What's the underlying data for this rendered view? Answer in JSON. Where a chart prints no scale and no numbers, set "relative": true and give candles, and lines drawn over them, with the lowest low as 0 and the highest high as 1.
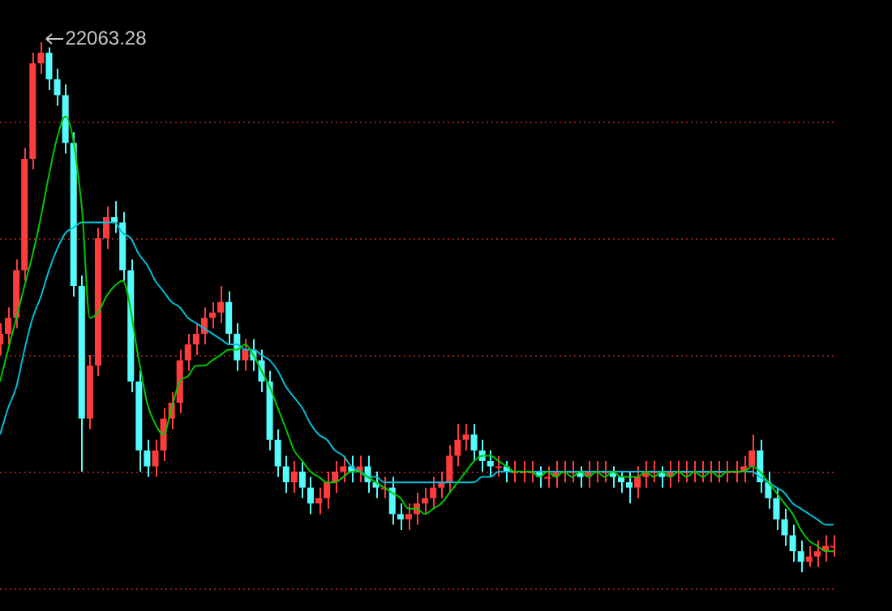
{
  "chart_data": {
    "type": "candlestick",
    "relative": true,
    "tick_labels": false,
    "ref_lines": [
      {
        "axis": "y",
        "value": 0.85,
        "color": "#8c1e1e",
        "line_style": "dotted"
      },
      {
        "axis": "y",
        "value": 0.63,
        "color": "#8c1e1e",
        "line_style": "dotted"
      },
      {
        "axis": "y",
        "value": 0.41,
        "color": "#8c1e1e",
        "line_style": "dotted"
      },
      {
        "axis": "y",
        "value": 0.19,
        "color": "#8c1e1e",
        "line_style": "dotted"
      },
      {
        "axis": "y",
        "value": -0.03,
        "color": "#8c1e1e",
        "line_style": "dotted"
      }
    ],
    "annotations": [
      "22063.28"
    ],
    "categories": [
      null,
      null,
      null,
      null,
      null,
      null,
      null,
      null,
      null,
      null,
      null,
      null,
      null,
      null,
      null,
      null,
      null,
      null,
      null,
      null,
      null,
      null,
      null,
      null,
      null,
      null,
      null,
      null,
      null,
      null,
      null,
      null,
      null,
      null,
      null,
      null,
      null,
      null,
      null,
      null,
      null,
      null,
      null,
      null,
      null,
      null,
      null,
      null,
      null,
      null,
      null,
      null,
      null,
      null,
      null,
      null,
      null,
      null,
      null,
      null,
      null,
      null,
      null,
      null,
      null,
      null,
      null,
      null,
      null,
      null,
      null,
      null,
      null,
      null,
      null,
      null,
      null,
      null,
      null,
      null,
      null,
      null,
      null,
      null,
      null,
      null,
      null,
      null,
      null,
      null,
      null,
      null,
      null,
      null,
      null,
      null,
      null,
      null,
      null,
      null,
      null,
      null,
      null
    ],
    "ohlc": [
      [
        0.43,
        0.47,
        0.41,
        0.45
      ],
      [
        0.45,
        0.5,
        0.43,
        0.48
      ],
      [
        0.48,
        0.59,
        0.46,
        0.57
      ],
      [
        0.57,
        0.8,
        0.55,
        0.78
      ],
      [
        0.78,
        0.98,
        0.76,
        0.96
      ],
      [
        0.96,
        1,
        0.94,
        0.98
      ],
      [
        0.98,
        0.99,
        0.91,
        0.93
      ],
      [
        0.93,
        0.95,
        0.88,
        0.9
      ],
      [
        0.9,
        0.92,
        0.79,
        0.81
      ],
      [
        0.81,
        0.83,
        0.52,
        0.54
      ],
      [
        0.54,
        0.56,
        0.19,
        0.29
      ],
      [
        0.29,
        0.41,
        0.27,
        0.39
      ],
      [
        0.39,
        0.65,
        0.37,
        0.63
      ],
      [
        0.63,
        0.69,
        0.61,
        0.67
      ],
      [
        0.67,
        0.7,
        0.64,
        0.66
      ],
      [
        0.66,
        0.68,
        0.55,
        0.57
      ],
      [
        0.57,
        0.59,
        0.34,
        0.36
      ],
      [
        0.36,
        0.38,
        0.19,
        0.23
      ],
      [
        0.23,
        0.25,
        0.18,
        0.2
      ],
      [
        0.2,
        0.25,
        0.18,
        0.23
      ],
      [
        0.23,
        0.31,
        0.21,
        0.29
      ],
      [
        0.29,
        0.34,
        0.27,
        0.32
      ],
      [
        0.32,
        0.42,
        0.3,
        0.4
      ],
      [
        0.4,
        0.45,
        0.38,
        0.43
      ],
      [
        0.43,
        0.47,
        0.41,
        0.45
      ],
      [
        0.45,
        0.5,
        0.43,
        0.48
      ],
      [
        0.48,
        0.51,
        0.46,
        0.49
      ],
      [
        0.49,
        0.54,
        0.47,
        0.51
      ],
      [
        0.51,
        0.53,
        0.43,
        0.45
      ],
      [
        0.45,
        0.47,
        0.38,
        0.4
      ],
      [
        0.4,
        0.44,
        0.38,
        0.42
      ],
      [
        0.42,
        0.44,
        0.38,
        0.4
      ],
      [
        0.4,
        0.42,
        0.34,
        0.36
      ],
      [
        0.36,
        0.38,
        0.23,
        0.25
      ],
      [
        0.25,
        0.27,
        0.18,
        0.2
      ],
      [
        0.2,
        0.22,
        0.15,
        0.17
      ],
      [
        0.17,
        0.21,
        0.15,
        0.19
      ],
      [
        0.19,
        0.21,
        0.14,
        0.16
      ],
      [
        0.16,
        0.18,
        0.11,
        0.13
      ],
      [
        0.13,
        0.16,
        0.11,
        0.14
      ],
      [
        0.14,
        0.19,
        0.12,
        0.17
      ],
      [
        0.17,
        0.21,
        0.15,
        0.19
      ],
      [
        0.19,
        0.22,
        0.17,
        0.2
      ],
      [
        0.2,
        0.22,
        0.17,
        0.19
      ],
      [
        0.19,
        0.22,
        0.17,
        0.2
      ],
      [
        0.2,
        0.22,
        0.15,
        0.17
      ],
      [
        0.17,
        0.19,
        0.14,
        0.16
      ],
      [
        0.16,
        0.18,
        0.14,
        0.16
      ],
      [
        0.16,
        0.18,
        0.09,
        0.11
      ],
      [
        0.11,
        0.13,
        0.08,
        0.1
      ],
      [
        0.1,
        0.13,
        0.08,
        0.11
      ],
      [
        0.11,
        0.15,
        0.09,
        0.13
      ],
      [
        0.13,
        0.16,
        0.11,
        0.14
      ],
      [
        0.14,
        0.18,
        0.12,
        0.16
      ],
      [
        0.16,
        0.19,
        0.14,
        0.17
      ],
      [
        0.17,
        0.24,
        0.15,
        0.22
      ],
      [
        0.22,
        0.28,
        0.2,
        0.25
      ],
      [
        0.25,
        0.28,
        0.23,
        0.26
      ],
      [
        0.26,
        0.28,
        0.21,
        0.23
      ],
      [
        0.23,
        0.25,
        0.19,
        0.21
      ],
      [
        0.21,
        0.23,
        0.18,
        0.2
      ],
      [
        0.2,
        0.22,
        0.18,
        0.2
      ],
      [
        0.2,
        0.21,
        0.17,
        0.19
      ],
      [
        0.19,
        0.21,
        0.17,
        0.19
      ],
      [
        0.19,
        0.21,
        0.17,
        0.19
      ],
      [
        0.19,
        0.21,
        0.17,
        0.19
      ],
      [
        0.19,
        0.2,
        0.16,
        0.18
      ],
      [
        0.18,
        0.2,
        0.16,
        0.18
      ],
      [
        0.18,
        0.21,
        0.16,
        0.19
      ],
      [
        0.19,
        0.21,
        0.17,
        0.19
      ],
      [
        0.19,
        0.21,
        0.17,
        0.19
      ],
      [
        0.19,
        0.2,
        0.16,
        0.18
      ],
      [
        0.18,
        0.21,
        0.16,
        0.19
      ],
      [
        0.19,
        0.21,
        0.17,
        0.19
      ],
      [
        0.19,
        0.21,
        0.17,
        0.19
      ],
      [
        0.19,
        0.2,
        0.16,
        0.18
      ],
      [
        0.18,
        0.19,
        0.15,
        0.17
      ],
      [
        0.17,
        0.19,
        0.13,
        0.16
      ],
      [
        0.16,
        0.2,
        0.14,
        0.18
      ],
      [
        0.18,
        0.21,
        0.16,
        0.19
      ],
      [
        0.19,
        0.21,
        0.17,
        0.19
      ],
      [
        0.19,
        0.2,
        0.16,
        0.18
      ],
      [
        0.18,
        0.21,
        0.16,
        0.19
      ],
      [
        0.19,
        0.21,
        0.17,
        0.19
      ],
      [
        0.19,
        0.21,
        0.17,
        0.19
      ],
      [
        0.19,
        0.21,
        0.17,
        0.19
      ],
      [
        0.19,
        0.21,
        0.17,
        0.19
      ],
      [
        0.19,
        0.21,
        0.17,
        0.19
      ],
      [
        0.19,
        0.21,
        0.17,
        0.19
      ],
      [
        0.19,
        0.21,
        0.17,
        0.19
      ],
      [
        0.19,
        0.21,
        0.17,
        0.19
      ],
      [
        0.19,
        0.22,
        0.17,
        0.2
      ],
      [
        0.2,
        0.26,
        0.18,
        0.23
      ],
      [
        0.23,
        0.25,
        0.15,
        0.17
      ],
      [
        0.17,
        0.19,
        0.12,
        0.14
      ],
      [
        0.14,
        0.16,
        0.08,
        0.1
      ],
      [
        0.1,
        0.12,
        0.05,
        0.07
      ],
      [
        0.07,
        0.09,
        0.02,
        0.04
      ],
      [
        0.04,
        0.06,
        0,
        0.02
      ],
      [
        0.02,
        0.05,
        0.01,
        0.03
      ],
      [
        0.03,
        0.06,
        0.01,
        0.04
      ],
      [
        0.04,
        0.07,
        0.02,
        0.05
      ],
      [
        0.05,
        0.07,
        0.03,
        0.05
      ]
    ],
    "series": [
      {
        "type": "line",
        "color": "#00c800",
        "values": [
          0.36,
          0.42,
          0.48,
          0.54,
          0.6,
          0.67,
          0.75,
          0.82,
          0.86,
          null,
          0.69,
          0.48,
          0.49,
          0.52,
          0.54,
          0.55,
          null,
          0.4,
          0.32,
          0.28,
          0.26,
          0.31,
          0.36,
          0.37,
          0.39,
          0.39,
          0.4,
          0.41,
          0.42,
          0.42,
          0.43,
          0.41,
          0.38,
          0.35,
          0.31,
          0.27,
          0.23,
          0.21,
          0.19,
          0.18,
          0.17,
          0.17,
          0.18,
          0.19,
          0.19,
          0.18,
          0.17,
          0.16,
          0.15,
          0.14,
          0.12,
          0.12,
          0.11,
          0.12,
          0.13,
          0.15,
          0.17,
          0.19,
          0.21,
          0.22,
          0.22,
          0.21,
          0.2,
          0.19,
          0.19,
          0.19,
          0.18,
          0.19,
          0.18,
          0.19,
          0.18,
          0.19,
          0.18,
          0.19,
          0.18,
          0.19,
          0.18,
          0.18,
          0.18,
          0.19,
          0.18,
          0.19,
          0.18,
          0.19,
          0.18,
          0.19,
          0.18,
          0.19,
          0.18,
          0.19,
          0.19,
          0.19,
          0.2,
          0.19,
          0.17,
          0.15,
          0.13,
          0.11,
          0.08,
          0.06,
          0.05,
          0.04,
          0.04
        ]
      },
      {
        "type": "line",
        "color": "#00c0d8",
        "values": [
          0.26,
          0.31,
          0.35,
          0.42,
          0.48,
          0.52,
          0.57,
          0.61,
          0.64,
          0.65,
          0.66,
          0.66,
          0.66,
          0.66,
          0.66,
          0.64,
          0.63,
          0.6,
          0.58,
          0.55,
          0.53,
          0.51,
          0.5,
          0.48,
          0.47,
          0.46,
          0.45,
          0.44,
          0.43,
          0.43,
          0.42,
          0.42,
          0.41,
          0.4,
          0.38,
          0.35,
          0.33,
          0.31,
          0.28,
          0.26,
          0.25,
          0.23,
          0.22,
          0.2,
          0.19,
          0.18,
          0.18,
          0.17,
          0.17,
          0.17,
          0.17,
          0.17,
          0.17,
          0.17,
          0.17,
          0.17,
          0.17,
          0.17,
          0.17,
          0.18,
          0.18,
          0.19,
          0.19,
          0.19,
          0.19,
          0.19,
          0.19,
          0.19,
          0.19,
          0.19,
          0.19,
          0.19,
          0.19,
          0.19,
          0.19,
          0.19,
          0.19,
          0.19,
          0.19,
          0.19,
          0.19,
          0.19,
          0.19,
          0.19,
          0.19,
          0.19,
          0.19,
          0.19,
          0.19,
          0.19,
          0.19,
          0.19,
          0.19,
          0.18,
          0.17,
          0.16,
          0.15,
          0.13,
          0.12,
          0.11,
          0.1,
          0.09,
          0.09
        ]
      }
    ]
  }
}
